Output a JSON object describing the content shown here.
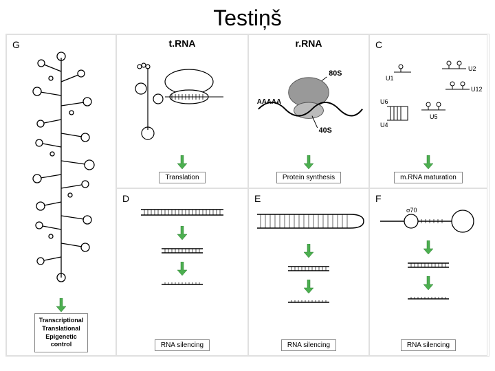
{
  "title": "Testiņš",
  "arrow": {
    "color": "#4caf50",
    "outline": "#2e7d32"
  },
  "border_color": "#e0e0e0",
  "caption_border": "#888888",
  "panels": {
    "a": {
      "header": "t.RNA",
      "caption": "Translation"
    },
    "b": {
      "header": "r.RNA",
      "caption": "Protein synthesis",
      "labels": {
        "top": "80S",
        "bottom": "40S",
        "tail": "AAAAA"
      }
    },
    "c": {
      "label": "C",
      "caption": "m.RNA maturation",
      "snrnas": [
        "U1",
        "U2",
        "U4",
        "U5",
        "U6",
        "U12"
      ]
    },
    "d": {
      "label": "D",
      "caption": "RNA silencing"
    },
    "e": {
      "label": "E",
      "caption": "RNA silencing"
    },
    "f": {
      "label": "F",
      "caption": "RNA silencing",
      "sigma": "σ70"
    },
    "g": {
      "label": "G",
      "caption": "Transcriptional\nTranslational\nEpigenetic\ncontrol"
    }
  },
  "colors": {
    "line": "#000000",
    "fill_gray": "#999999",
    "bg": "#ffffff"
  }
}
